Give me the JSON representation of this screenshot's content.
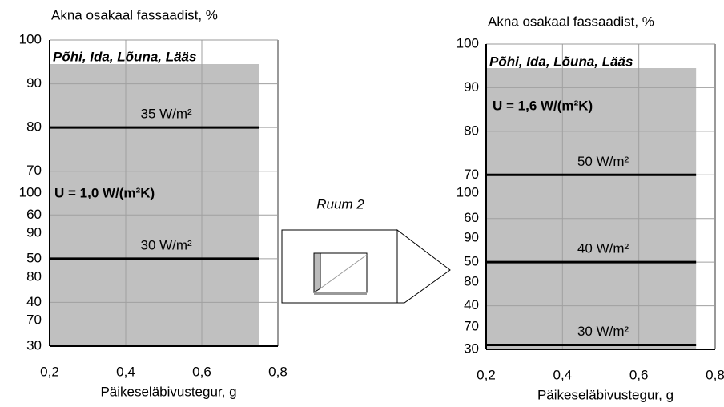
{
  "inset": {
    "label": "Ruum 2"
  },
  "chart_data": [
    {
      "type": "line",
      "y_label": "Akna osakaal fassaadist, %",
      "x_label": "Päikeseläbivustegur, g",
      "heading": "Põhi, Ida, Lõuna, Lääs",
      "annotation": "U = 1,0 W/(m²K)",
      "xlim": [
        0.2,
        0.8
      ],
      "ylim": [
        30,
        100
      ],
      "xticks": [
        {
          "value": 0.2,
          "label": "0,2"
        },
        {
          "value": 0.4,
          "label": "0,4"
        },
        {
          "value": 0.6,
          "label": "0,6"
        },
        {
          "value": 0.8,
          "label": "0,8"
        }
      ],
      "yticks": [
        30,
        40,
        50,
        60,
        70,
        80,
        90,
        100
      ],
      "extra_tick_labels": [
        100,
        90,
        80,
        70
      ],
      "grid": true,
      "x": [
        0.2,
        0.75
      ],
      "series": [
        {
          "name": "35 W/m²",
          "color": "#000000",
          "values": [
            80,
            80
          ]
        },
        {
          "name": "30 W/m²",
          "color": "#000000",
          "values": [
            50,
            50
          ]
        }
      ]
    },
    {
      "type": "line",
      "y_label": "Akna osakaal fassaadist, %",
      "x_label": "Päikeseläbivustegur, g",
      "heading": "Põhi, Ida, Lõuna, Lääs",
      "annotation": "U = 1,6 W/(m²K)",
      "xlim": [
        0.2,
        0.8
      ],
      "ylim": [
        30,
        100
      ],
      "xticks": [
        {
          "value": 0.2,
          "label": "0,2"
        },
        {
          "value": 0.4,
          "label": "0,4"
        },
        {
          "value": 0.6,
          "label": "0,6"
        },
        {
          "value": 0.8,
          "label": "0,8"
        }
      ],
      "yticks": [
        30,
        40,
        50,
        60,
        70,
        80,
        90,
        100
      ],
      "extra_tick_labels": [
        100,
        90,
        80,
        70
      ],
      "grid": true,
      "x": [
        0.2,
        0.75
      ],
      "series": [
        {
          "name": "50 W/m²",
          "color": "#000000",
          "values": [
            70,
            70
          ]
        },
        {
          "name": "40 W/m²",
          "color": "#000000",
          "values": [
            50,
            50
          ]
        },
        {
          "name": "30 W/m²",
          "color": "#000000",
          "values": [
            31,
            31
          ]
        }
      ]
    }
  ]
}
